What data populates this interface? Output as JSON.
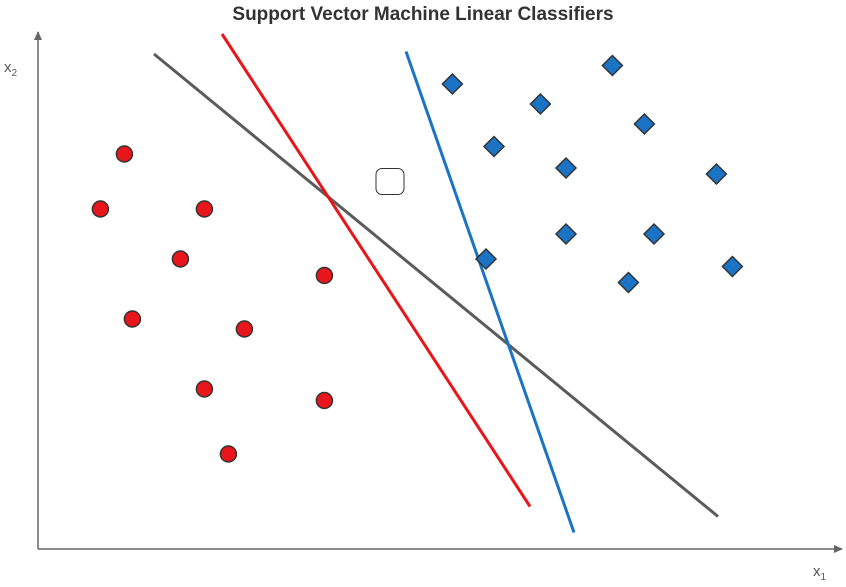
{
  "title": "Support Vector Machine Linear Classifiers",
  "axes": {
    "x_label": "x",
    "x_sub": "1",
    "y_label": "x",
    "y_sub": "2"
  },
  "colors": {
    "class_a": "#e8151b",
    "class_b": "#1a73c4",
    "line_gray": "#5b5b5b",
    "line_red": "#e8151b",
    "line_blue": "#1a73c4",
    "axis": "#666666",
    "outline": "#333333"
  },
  "chart_data": {
    "type": "scatter",
    "title": "Support Vector Machine Linear Classifiers",
    "xlabel": "x1",
    "ylabel": "x2",
    "xlim": [
      0,
      100
    ],
    "ylim": [
      0,
      100
    ],
    "grid": false,
    "series": [
      {
        "key": "class_a",
        "marker": "circle",
        "points": [
          [
            10.8,
            79.0
          ],
          [
            7.8,
            68.0
          ],
          [
            20.8,
            68.0
          ],
          [
            17.8,
            58.0
          ],
          [
            35.8,
            54.7
          ],
          [
            11.8,
            46.0
          ],
          [
            25.8,
            44.0
          ],
          [
            20.8,
            32.0
          ],
          [
            35.8,
            29.7
          ],
          [
            23.8,
            19.0
          ]
        ]
      },
      {
        "key": "class_b",
        "marker": "diamond",
        "points": [
          [
            51.8,
            93.0
          ],
          [
            71.8,
            96.7
          ],
          [
            62.8,
            89.0
          ],
          [
            75.8,
            85.0
          ],
          [
            57.0,
            80.5
          ],
          [
            66.0,
            76.2
          ],
          [
            84.8,
            75.0
          ],
          [
            66.0,
            63.0
          ],
          [
            77.0,
            63.0
          ],
          [
            56.0,
            58.0
          ],
          [
            86.8,
            56.5
          ],
          [
            73.8,
            53.3
          ]
        ]
      },
      {
        "key": "unknown",
        "marker": "rounded-square",
        "points": [
          [
            44.0,
            73.5
          ]
        ]
      }
    ],
    "lines": [
      {
        "key": "line_gray",
        "from": [
          14.5,
          99.0
        ],
        "to": [
          85.0,
          6.5
        ]
      },
      {
        "key": "line_red",
        "from": [
          23.0,
          103.0
        ],
        "to": [
          61.5,
          8.5
        ]
      },
      {
        "key": "line_blue",
        "from": [
          46.0,
          99.5
        ],
        "to": [
          67.0,
          3.3
        ]
      }
    ]
  }
}
